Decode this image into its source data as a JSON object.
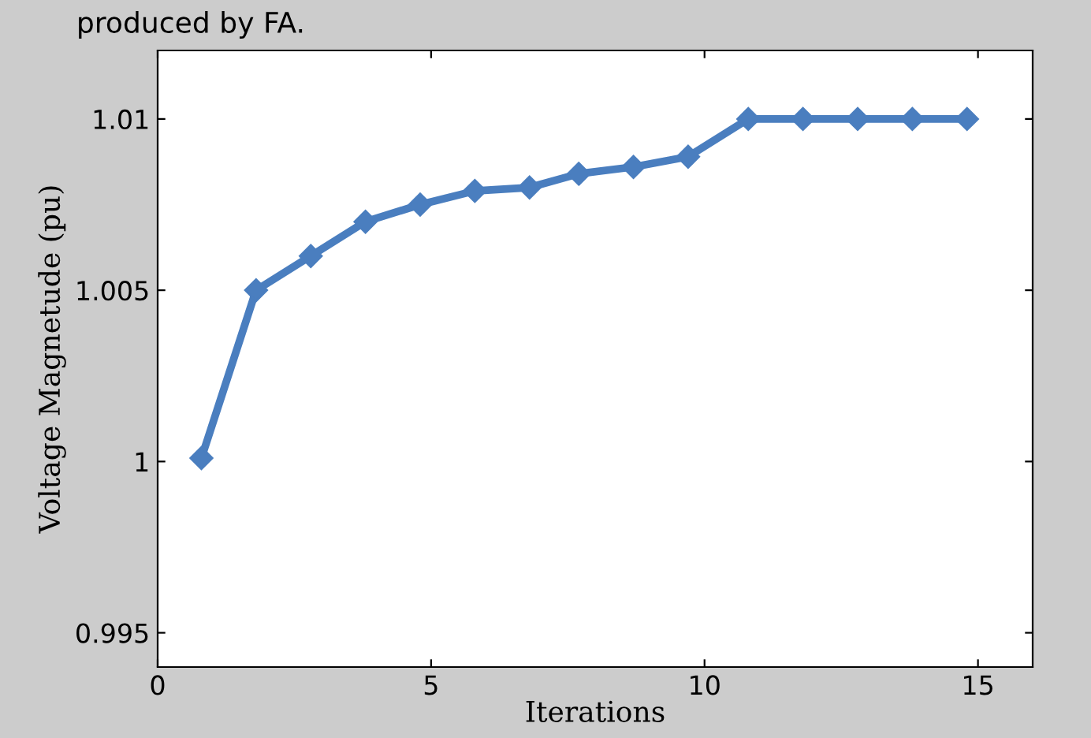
{
  "chart_data": {
    "type": "line",
    "xlabel": "Iterations",
    "ylabel": "Voltage Magnetude (pu)",
    "annotations": [
      "produced by FA."
    ],
    "x": [
      0.8,
      1.8,
      2.8,
      3.8,
      4.8,
      5.8,
      6.8,
      7.7,
      8.7,
      9.7,
      10.8,
      11.8,
      12.8,
      13.8,
      14.8
    ],
    "series": [
      {
        "color": "#4a7ebf",
        "values": [
          1.0001,
          1.005,
          1.006,
          1.007,
          1.0075,
          1.0079,
          1.008,
          1.0084,
          1.0086,
          1.0089,
          1.01,
          1.01,
          1.01,
          1.01,
          1.01
        ]
      }
    ],
    "xlim": [
      0,
      16
    ],
    "ylim": [
      0.994,
      1.012
    ],
    "xticks": [
      0,
      5,
      10,
      15
    ],
    "yticks": [
      0.995,
      1.005,
      1.01,
      {
        "value": 1.0,
        "label": "1"
      }
    ],
    "marker": "diamond",
    "line_style": "solid",
    "grid": false,
    "legend": false
  }
}
